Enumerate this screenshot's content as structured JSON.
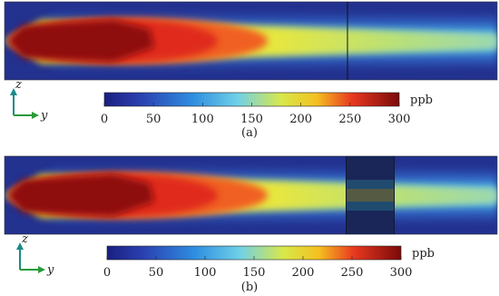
{
  "panels": [
    {
      "caption": "(a)",
      "axes": {
        "vertical": "z",
        "horizontal": "y"
      },
      "colorbar": {
        "lim": [
          0,
          300
        ],
        "ticks": [
          0,
          50,
          100,
          150,
          200,
          250,
          300
        ],
        "unit": "ppb"
      }
    },
    {
      "caption": "(b)",
      "axes": {
        "vertical": "z",
        "horizontal": "y"
      },
      "colorbar": {
        "lim": [
          0,
          300
        ],
        "ticks": [
          0,
          50,
          100,
          150,
          200,
          250,
          300
        ],
        "unit": "ppb"
      }
    }
  ]
}
